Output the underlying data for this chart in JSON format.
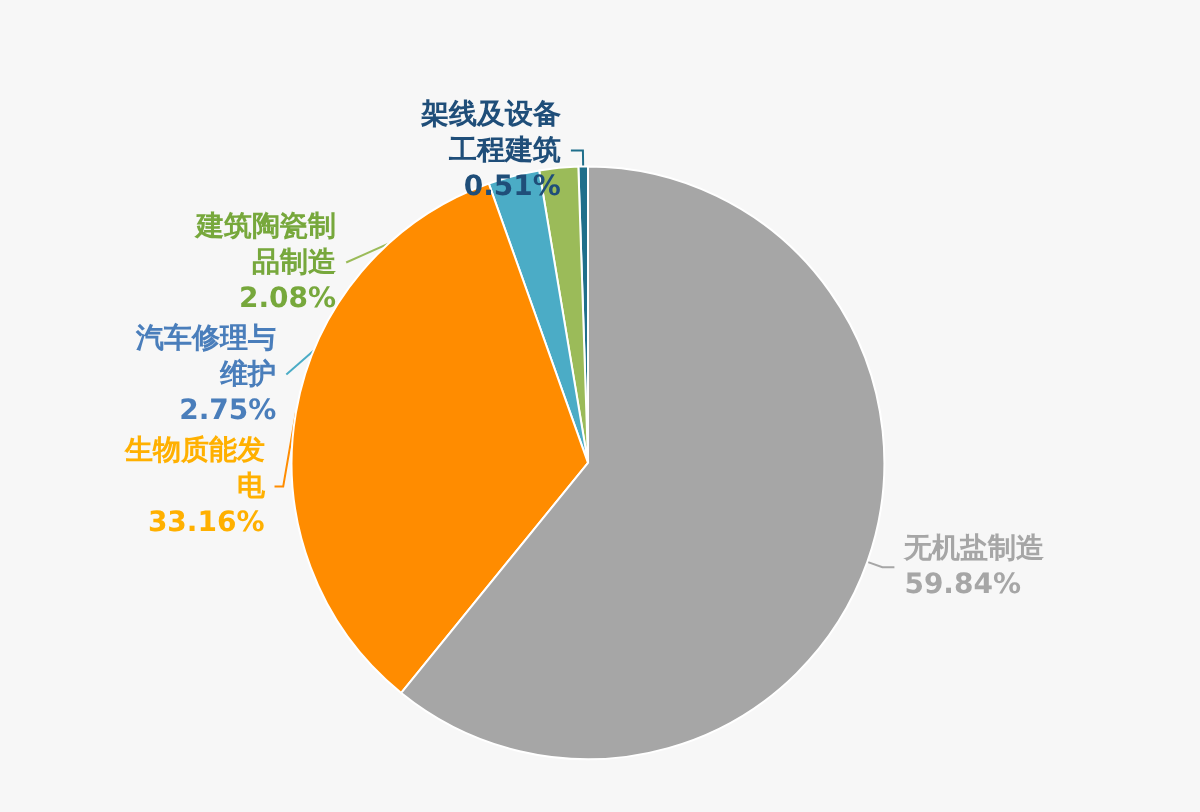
{
  "chart_data": {
    "type": "pie",
    "categories": [
      "架线及设备工程建筑",
      "建筑陶瓷制品制造",
      "汽车修理与维护",
      "生物质能发电",
      "无机盐制造"
    ],
    "values": [
      0.51,
      2.08,
      2.75,
      33.16,
      59.84
    ],
    "value_labels": [
      "0.51%",
      "2.08%",
      "2.75%",
      "33.16%",
      "59.84%"
    ],
    "colors": [
      "#1f6f8b",
      "#9bbb59",
      "#4bacc6",
      "#ff8c00",
      "#a6a6a6"
    ],
    "legend": false
  }
}
